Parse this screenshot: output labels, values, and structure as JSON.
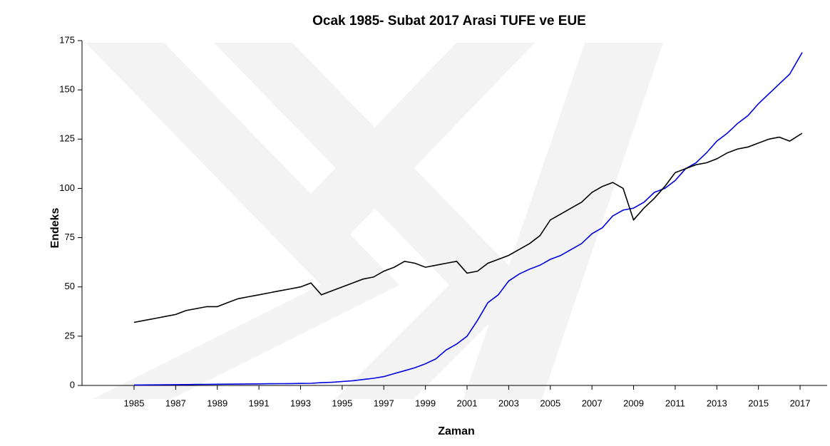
{
  "chart_data": {
    "type": "line",
    "title": "Ocak 1985- Subat 2017 Arasi TUFE ve EUE",
    "x_label": "Zaman",
    "y_label": "Endeks",
    "x": [
      1985,
      1985.5,
      1986,
      1986.5,
      1987,
      1987.5,
      1988,
      1988.5,
      1989,
      1989.5,
      1990,
      1990.5,
      1991,
      1991.5,
      1992,
      1992.5,
      1993,
      1993.5,
      1994,
      1994.5,
      1995,
      1995.5,
      1996,
      1996.5,
      1997,
      1997.5,
      1998,
      1998.5,
      1999,
      1999.5,
      2000,
      2000.5,
      2001,
      2001.5,
      2002,
      2002.5,
      2003,
      2003.5,
      2004,
      2004.5,
      2005,
      2005.5,
      2006,
      2006.5,
      2007,
      2007.5,
      2008,
      2008.5,
      2009,
      2009.5,
      2010,
      2010.5,
      2011,
      2011.5,
      2012,
      2012.5,
      2013,
      2013.5,
      2014,
      2014.5,
      2015,
      2015.5,
      2016,
      2016.5,
      2017.1
    ],
    "series": [
      {
        "color": "#0000e0",
        "values": [
          0.2,
          0.25,
          0.3,
          0.35,
          0.4,
          0.45,
          0.5,
          0.55,
          0.6,
          0.65,
          0.7,
          0.75,
          0.8,
          0.85,
          0.9,
          0.95,
          1.0,
          1.1,
          1.4,
          1.6,
          2.0,
          2.4,
          3.0,
          3.6,
          4.5,
          6.0,
          7.5,
          9.0,
          11,
          13.5,
          18,
          21,
          25,
          33,
          42,
          46,
          53,
          56.5,
          59,
          61,
          64,
          66,
          69,
          72,
          77,
          80,
          86,
          89,
          90,
          93,
          98,
          100,
          104,
          110,
          113,
          118,
          124,
          128,
          133,
          137,
          143,
          148,
          153,
          158,
          169
        ]
      },
      {
        "color": "#000000",
        "values": [
          32,
          33,
          34,
          35,
          36,
          38,
          39,
          40,
          40,
          42,
          44,
          45,
          46,
          47,
          48,
          49,
          50,
          52,
          46,
          48,
          50,
          52,
          54,
          55,
          58,
          60,
          63,
          62,
          60,
          61,
          62,
          63,
          57,
          58,
          62,
          64,
          66,
          69,
          72,
          76,
          84,
          87,
          90,
          93,
          98,
          101,
          103,
          100,
          84,
          90,
          95,
          101,
          108,
          110,
          112,
          113,
          115,
          118,
          120,
          121,
          123,
          125,
          126,
          124,
          128
        ]
      }
    ],
    "xlim": [
      1982.5,
      2018.3
    ],
    "xticks": [
      1985,
      1987,
      1989,
      1991,
      1993,
      1995,
      1997,
      1999,
      2001,
      2003,
      2005,
      2007,
      2009,
      2011,
      2013,
      2015,
      2017
    ],
    "ylim": [
      0,
      175
    ],
    "yticks": [
      0,
      25,
      50,
      75,
      100,
      125,
      150,
      175
    ],
    "grid": false
  }
}
